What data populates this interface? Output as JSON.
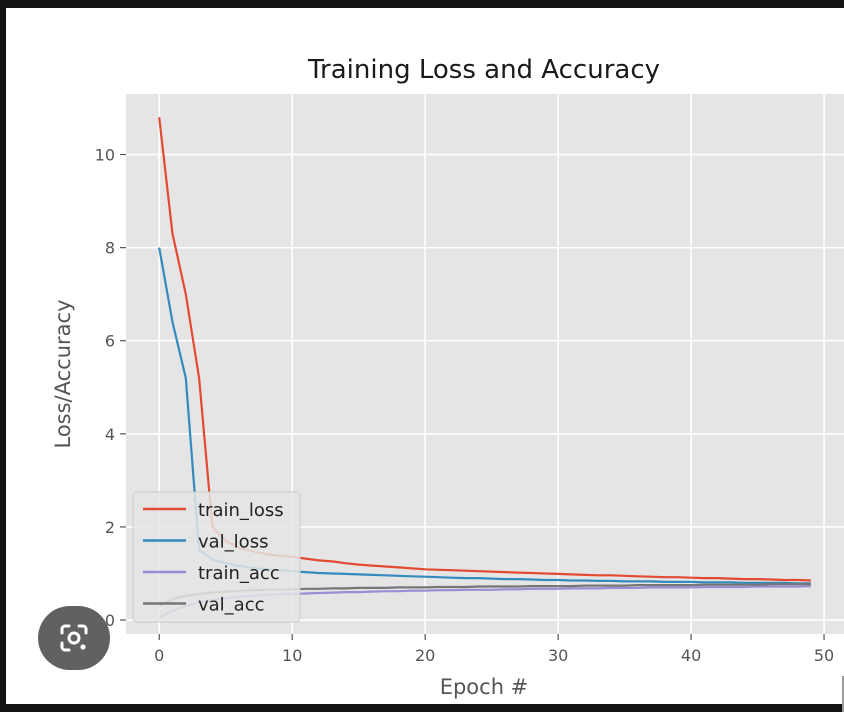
{
  "chart_data": {
    "type": "line",
    "title": "Training Loss and Accuracy",
    "xlabel": "Epoch #",
    "ylabel": "Loss/Accuracy",
    "xlim": [
      -2.5,
      51.5
    ],
    "ylim": [
      -0.3,
      11.3
    ],
    "xticks": [
      0,
      10,
      20,
      30,
      40,
      50
    ],
    "yticks": [
      0,
      2,
      4,
      6,
      8,
      10
    ],
    "grid": true,
    "legend_position": "lower-left",
    "series": [
      {
        "name": "train_loss",
        "color": "#e24a33",
        "x": [
          0,
          1,
          2,
          3,
          4,
          5,
          6,
          7,
          8,
          9,
          10,
          11,
          12,
          13,
          14,
          15,
          16,
          17,
          18,
          19,
          20,
          21,
          22,
          23,
          24,
          25,
          26,
          27,
          28,
          29,
          30,
          31,
          32,
          33,
          34,
          35,
          36,
          37,
          38,
          39,
          40,
          41,
          42,
          43,
          44,
          45,
          46,
          47,
          48,
          49
        ],
        "values": [
          10.8,
          8.3,
          7.0,
          5.2,
          2.0,
          1.7,
          1.55,
          1.48,
          1.42,
          1.38,
          1.36,
          1.32,
          1.28,
          1.26,
          1.22,
          1.19,
          1.17,
          1.15,
          1.13,
          1.11,
          1.09,
          1.08,
          1.07,
          1.06,
          1.05,
          1.04,
          1.03,
          1.02,
          1.01,
          1.0,
          0.99,
          0.98,
          0.97,
          0.96,
          0.96,
          0.95,
          0.94,
          0.93,
          0.92,
          0.92,
          0.91,
          0.9,
          0.9,
          0.89,
          0.88,
          0.88,
          0.87,
          0.86,
          0.86,
          0.85
        ]
      },
      {
        "name": "val_loss",
        "color": "#348abd",
        "x": [
          0,
          1,
          2,
          3,
          4,
          5,
          6,
          7,
          8,
          9,
          10,
          11,
          12,
          13,
          14,
          15,
          16,
          17,
          18,
          19,
          20,
          21,
          22,
          23,
          24,
          25,
          26,
          27,
          28,
          29,
          30,
          31,
          32,
          33,
          34,
          35,
          36,
          37,
          38,
          39,
          40,
          41,
          42,
          43,
          44,
          45,
          46,
          47,
          48,
          49
        ],
        "values": [
          8.0,
          6.4,
          5.2,
          1.5,
          1.3,
          1.22,
          1.16,
          1.12,
          1.09,
          1.07,
          1.05,
          1.03,
          1.01,
          1.0,
          0.99,
          0.98,
          0.97,
          0.96,
          0.95,
          0.94,
          0.93,
          0.92,
          0.91,
          0.9,
          0.9,
          0.89,
          0.88,
          0.88,
          0.87,
          0.86,
          0.86,
          0.85,
          0.85,
          0.84,
          0.84,
          0.83,
          0.83,
          0.83,
          0.82,
          0.82,
          0.82,
          0.81,
          0.81,
          0.81,
          0.8,
          0.8,
          0.8,
          0.8,
          0.79,
          0.79
        ]
      },
      {
        "name": "train_acc",
        "color": "#988ed5",
        "x": [
          0,
          1,
          2,
          3,
          4,
          5,
          6,
          7,
          8,
          9,
          10,
          11,
          12,
          13,
          14,
          15,
          16,
          17,
          18,
          19,
          20,
          21,
          22,
          23,
          24,
          25,
          26,
          27,
          28,
          29,
          30,
          31,
          32,
          33,
          34,
          35,
          36,
          37,
          38,
          39,
          40,
          41,
          42,
          43,
          44,
          45,
          46,
          47,
          48,
          49
        ],
        "values": [
          0.05,
          0.2,
          0.3,
          0.38,
          0.43,
          0.47,
          0.5,
          0.52,
          0.54,
          0.55,
          0.56,
          0.57,
          0.58,
          0.59,
          0.6,
          0.6,
          0.61,
          0.62,
          0.62,
          0.63,
          0.63,
          0.64,
          0.64,
          0.65,
          0.65,
          0.65,
          0.66,
          0.66,
          0.67,
          0.67,
          0.67,
          0.68,
          0.68,
          0.68,
          0.69,
          0.69,
          0.69,
          0.7,
          0.7,
          0.7,
          0.7,
          0.71,
          0.71,
          0.71,
          0.71,
          0.72,
          0.72,
          0.72,
          0.72,
          0.73
        ]
      },
      {
        "name": "val_acc",
        "color": "#777777",
        "x": [
          0,
          1,
          2,
          3,
          4,
          5,
          6,
          7,
          8,
          9,
          10,
          11,
          12,
          13,
          14,
          15,
          16,
          17,
          18,
          19,
          20,
          21,
          22,
          23,
          24,
          25,
          26,
          27,
          28,
          29,
          30,
          31,
          32,
          33,
          34,
          35,
          36,
          37,
          38,
          39,
          40,
          41,
          42,
          43,
          44,
          45,
          46,
          47,
          48,
          49
        ],
        "values": [
          0.3,
          0.45,
          0.52,
          0.56,
          0.59,
          0.61,
          0.63,
          0.64,
          0.65,
          0.66,
          0.66,
          0.67,
          0.67,
          0.68,
          0.68,
          0.69,
          0.69,
          0.69,
          0.7,
          0.7,
          0.7,
          0.71,
          0.71,
          0.71,
          0.72,
          0.72,
          0.72,
          0.72,
          0.73,
          0.73,
          0.73,
          0.73,
          0.74,
          0.74,
          0.74,
          0.74,
          0.75,
          0.75,
          0.75,
          0.75,
          0.75,
          0.76,
          0.76,
          0.76,
          0.76,
          0.76,
          0.77,
          0.77,
          0.77,
          0.77
        ]
      }
    ]
  },
  "overlay": {
    "lens_icon": "google-lens-icon"
  }
}
